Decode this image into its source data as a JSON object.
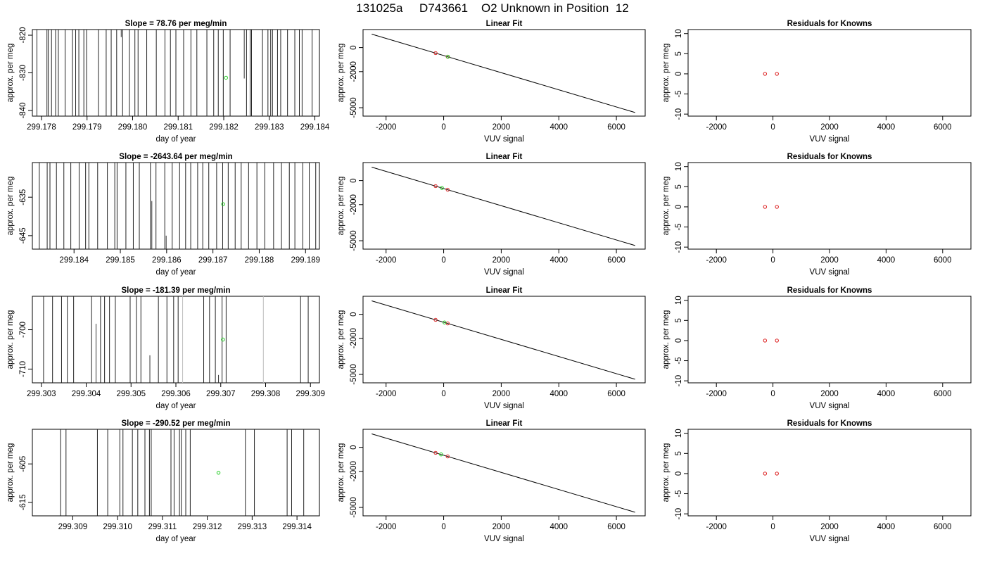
{
  "page_title": "131025a     D743661    O2 Unknown in Position  12",
  "chart_data": [
    {
      "type": "line",
      "panel": "timeseries",
      "row": 0,
      "title": "Slope =  78.76  per meg/min",
      "xlabel": "day of year",
      "ylabel": "approx. per meg",
      "xlim": [
        299.1778,
        299.1841
      ],
      "ylim": [
        -841.5,
        -818.5
      ],
      "xticks": [
        299.178,
        299.179,
        299.18,
        299.181,
        299.182,
        299.183,
        299.184
      ],
      "xtick_labels": [
        "299.178",
        "299.179",
        "299.180",
        "299.181",
        "299.182",
        "299.183",
        "299.184"
      ],
      "yticks": [
        -820,
        -830,
        -840
      ],
      "ytick_labels": [
        "-820",
        "-830",
        "-840"
      ],
      "vlines": [
        299.1779,
        299.17812,
        299.17815,
        299.17822,
        299.17831,
        299.17837,
        299.17852,
        299.17868,
        299.17875,
        299.17882,
        299.17893,
        299.17899,
        299.17925,
        299.17942,
        299.17953,
        299.17965,
        299.17978,
        299.17993,
        299.18005,
        299.18012,
        299.18031,
        299.18052,
        299.18071,
        299.18083,
        299.18095,
        299.18112,
        299.18128,
        299.18141,
        299.18163,
        299.18178,
        299.18188,
        299.18199,
        299.18214,
        299.1825,
        299.18258,
        299.18261,
        299.18285,
        299.18297,
        299.18303,
        299.18307,
        299.18318,
        299.18325,
        299.1834,
        299.18356,
        299.18366,
        299.18372,
        299.18394
      ],
      "short_lines": [
        {
          "x": 299.17975,
          "y0": -818.5,
          "y1": -820.5
        },
        {
          "x": 299.18245,
          "y0": -818.5,
          "y1": -831.5
        }
      ],
      "unknown_point": {
        "x": 299.18205,
        "y": -831.3
      }
    },
    {
      "type": "line",
      "panel": "timeseries",
      "row": 1,
      "title": "Slope =  -2643.64  per meg/min",
      "xlabel": "day of year",
      "ylabel": "approx. per meg",
      "xlim": [
        299.1831,
        299.1893
      ],
      "ylim": [
        -648.5,
        -626.0
      ],
      "xticks": [
        299.184,
        299.185,
        299.186,
        299.187,
        299.188,
        299.189
      ],
      "xtick_labels": [
        "299.184",
        "299.185",
        "299.186",
        "299.187",
        "299.188",
        "299.189"
      ],
      "yticks": [
        -635,
        -645
      ],
      "ytick_labels": [
        "-635",
        "-645"
      ],
      "vlines": [
        299.18325,
        299.18342,
        299.18348,
        299.18362,
        299.18378,
        299.18393,
        299.18411,
        299.18425,
        299.18432,
        299.18451,
        299.18472,
        299.18488,
        299.18493,
        299.18512,
        299.18528,
        299.18541,
        299.18565,
        299.18577,
        299.18596,
        299.18612,
        299.18628,
        299.18641,
        299.18652,
        299.18667,
        299.18678,
        299.18691,
        299.18708,
        299.18721,
        299.18733,
        299.18748,
        299.18761,
        299.18777,
        299.18795,
        299.18812,
        299.18831,
        299.18848,
        299.18865,
        299.18877,
        299.18894,
        299.18908,
        299.18922
      ],
      "short_lines": [
        {
          "x": 299.18568,
          "y0": -636.0,
          "y1": -648.5
        },
        {
          "x": 299.18599,
          "y0": -645.0,
          "y1": -648.5
        }
      ],
      "unknown_point": {
        "x": 299.18722,
        "y": -636.8
      }
    },
    {
      "type": "line",
      "panel": "timeseries",
      "row": 2,
      "title": "Slope =  -181.39  per meg/min",
      "xlabel": "day of year",
      "ylabel": "approx. per meg",
      "xlim": [
        299.3028,
        299.3092
      ],
      "ylim": [
        -713.5,
        -691.5
      ],
      "xticks": [
        299.303,
        299.304,
        299.305,
        299.306,
        299.307,
        299.308,
        299.309
      ],
      "xtick_labels": [
        "299.303",
        "299.304",
        "299.305",
        "299.306",
        "299.307",
        "299.308",
        "299.309"
      ],
      "yticks": [
        -700,
        -710
      ],
      "ytick_labels": [
        "-700",
        "-710"
      ],
      "vlines": [
        299.30305,
        299.30325,
        299.30345,
        299.30358,
        299.30372,
        299.30412,
        299.30432,
        299.30441,
        299.30452,
        299.30465,
        299.30498,
        299.30512,
        299.30522,
        299.30561,
        299.3058,
        299.30595,
        299.30605,
        299.30662,
        299.30675,
        299.30688,
        299.30703,
        299.30712,
        299.30878,
        299.30895
      ],
      "gray_vlines": [
        299.30615,
        299.30795
      ],
      "short_lines": [
        {
          "x": 299.30422,
          "y0": -698.5,
          "y1": -713.5
        },
        {
          "x": 299.30542,
          "y0": -706.5,
          "y1": -713.5
        },
        {
          "x": 299.30695,
          "y0": -711.5,
          "y1": -713.5
        }
      ],
      "unknown_point": {
        "x": 299.30705,
        "y": -702.5
      }
    },
    {
      "type": "line",
      "panel": "timeseries",
      "row": 3,
      "title": "Slope =  -290.52  per meg/min",
      "xlabel": "day of year",
      "ylabel": "approx. per meg",
      "xlim": [
        299.3081,
        299.3145
      ],
      "ylim": [
        -618.5,
        -596.0
      ],
      "xticks": [
        299.309,
        299.31,
        299.311,
        299.312,
        299.313,
        299.314
      ],
      "xtick_labels": [
        "299.309",
        "299.310",
        "299.311",
        "299.312",
        "299.313",
        "299.314"
      ],
      "yticks": [
        -605,
        -615
      ],
      "ytick_labels": [
        "-605",
        "-615"
      ],
      "vlines": [
        299.30873,
        299.30885,
        299.30955,
        299.30978,
        299.31005,
        299.31012,
        299.31033,
        299.31045,
        299.31061,
        299.31071,
        299.31075,
        299.31119,
        299.31126,
        299.31138,
        299.31142,
        299.31152,
        299.31162,
        299.31285,
        299.31305,
        299.31378,
        299.31388,
        299.31415
      ],
      "gray_vlines": [
        299.31152
      ],
      "short_lines": [],
      "unknown_point": {
        "x": 299.31225,
        "y": -607.3
      }
    },
    {
      "type": "line",
      "panel": "linear_fit",
      "title": "Linear Fit",
      "xlabel": "VUV signal",
      "ylabel": "approx. per meg",
      "xlim": [
        -2800,
        7000
      ],
      "ylim": [
        -5700,
        1500
      ],
      "xticks": [
        -2000,
        0,
        2000,
        4000,
        6000
      ],
      "xtick_labels": [
        "-2000",
        "0",
        "2000",
        "4000",
        "6000"
      ],
      "yticks": [
        0,
        -2000,
        -5000
      ],
      "ytick_labels": [
        "0",
        "-2000",
        "-5000"
      ],
      "fit_line": {
        "x": [
          -2500,
          6650
        ],
        "y": [
          1120,
          -5400
        ]
      },
      "knowns": [
        {
          "x": -280,
          "y": -460
        },
        {
          "x": 140,
          "y": -760
        }
      ],
      "unknowns_by_row": [
        {
          "x": 150,
          "y": -760
        },
        {
          "x": -60,
          "y": -610
        },
        {
          "x": 30,
          "y": -680
        },
        {
          "x": -90,
          "y": -590
        }
      ]
    },
    {
      "type": "scatter",
      "panel": "residuals",
      "title": "Residuals for Knowns",
      "xlabel": "VUV signal",
      "ylabel": "approx. per meg",
      "xlim": [
        -3000,
        7000
      ],
      "ylim": [
        -10.5,
        11
      ],
      "xticks": [
        -2000,
        0,
        2000,
        4000,
        6000
      ],
      "xtick_labels": [
        "-2000",
        "0",
        "2000",
        "4000",
        "6000"
      ],
      "yticks": [
        10,
        5,
        0,
        -5,
        -10
      ],
      "ytick_labels": [
        "10",
        "5",
        "0",
        "-5",
        "-10"
      ],
      "points": [
        {
          "x": -280,
          "y": 0
        },
        {
          "x": 140,
          "y": 0
        }
      ]
    }
  ]
}
